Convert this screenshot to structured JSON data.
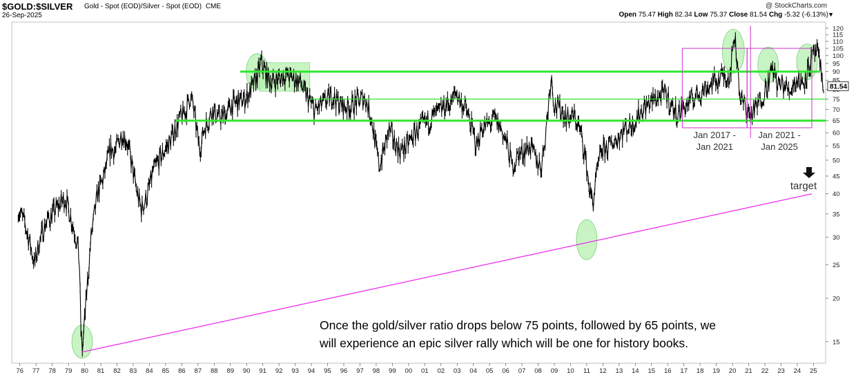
{
  "header": {
    "symbol": "$GOLD:$SILVER",
    "description": "Gold - Spot (EOD)/Silver - Spot (EOD)",
    "exchange": "CME",
    "date": "26-Sep-2025",
    "watermark": "@ StockCharts.com",
    "open_label": "Open",
    "open": "75.47",
    "high_label": "High",
    "high": "82.34",
    "low_label": "Low",
    "low": "75.37",
    "close_label": "Close",
    "close": "81.54",
    "chg_label": "Chg",
    "chg": "-5.32 (-6.13%)",
    "dropdown_icon": "triangle-down-icon"
  },
  "colors": {
    "price": "#000000",
    "support_line": "#2ee82e",
    "trendline": "#ee22ee",
    "highlight": "#b6f0b0",
    "box": "#cc33cc",
    "last_price_box": "#ffffff",
    "grid": "#e6e6e6"
  },
  "chart_data": {
    "type": "line",
    "log_scale": true,
    "grid": false,
    "y_ticks": [
      15,
      20,
      25,
      30,
      35,
      40,
      45,
      50,
      55,
      60,
      65,
      70,
      75,
      80,
      85,
      90,
      95,
      100,
      105,
      110,
      115,
      120
    ],
    "x_ticks": [
      "76",
      "77",
      "78",
      "79",
      "80",
      "81",
      "82",
      "83",
      "84",
      "85",
      "86",
      "87",
      "88",
      "89",
      "90",
      "91",
      "92",
      "93",
      "94",
      "95",
      "96",
      "97",
      "98",
      "99",
      "00",
      "01",
      "02",
      "03",
      "04",
      "05",
      "06",
      "07",
      "08",
      "09",
      "10",
      "11",
      "12",
      "13",
      "14",
      "15",
      "16",
      "17",
      "18",
      "19",
      "20",
      "21",
      "22",
      "23",
      "24",
      "25"
    ],
    "last_value": "81.54",
    "series": [
      {
        "values_approx": [
          [
            1976.0,
            36
          ],
          [
            1976.4,
            33
          ],
          [
            1976.8,
            28
          ],
          [
            1977.0,
            25
          ],
          [
            1977.3,
            29
          ],
          [
            1977.7,
            33
          ],
          [
            1978.1,
            35
          ],
          [
            1978.5,
            37
          ],
          [
            1978.9,
            39
          ],
          [
            1979.2,
            35
          ],
          [
            1979.5,
            31
          ],
          [
            1979.7,
            28
          ],
          [
            1979.8,
            24
          ],
          [
            1979.85,
            17
          ],
          [
            1979.95,
            14
          ],
          [
            1980.05,
            16
          ],
          [
            1980.2,
            20
          ],
          [
            1980.5,
            30
          ],
          [
            1980.9,
            40
          ],
          [
            1981.3,
            45
          ],
          [
            1981.7,
            54
          ],
          [
            1982.0,
            53
          ],
          [
            1982.4,
            60
          ],
          [
            1982.7,
            57
          ],
          [
            1983.0,
            49
          ],
          [
            1983.3,
            41
          ],
          [
            1983.6,
            36
          ],
          [
            1984.0,
            40
          ],
          [
            1984.3,
            46
          ],
          [
            1984.7,
            50
          ],
          [
            1985.0,
            53
          ],
          [
            1985.4,
            57
          ],
          [
            1985.7,
            62
          ],
          [
            1986.0,
            66
          ],
          [
            1986.4,
            70
          ],
          [
            1986.6,
            77
          ],
          [
            1986.8,
            72
          ],
          [
            1987.0,
            62
          ],
          [
            1987.2,
            54
          ],
          [
            1987.5,
            62
          ],
          [
            1988.0,
            70
          ],
          [
            1988.4,
            66
          ],
          [
            1988.8,
            68
          ],
          [
            1989.2,
            72
          ],
          [
            1989.6,
            74
          ],
          [
            1990.0,
            75
          ],
          [
            1990.4,
            80
          ],
          [
            1990.8,
            88
          ],
          [
            1991.0,
            96
          ],
          [
            1991.3,
            88
          ],
          [
            1991.7,
            84
          ],
          [
            1992.1,
            86
          ],
          [
            1992.5,
            88
          ],
          [
            1993.0,
            86
          ],
          [
            1993.4,
            84
          ],
          [
            1993.7,
            78
          ],
          [
            1994.0,
            74
          ],
          [
            1994.3,
            69
          ],
          [
            1994.7,
            72
          ],
          [
            1995.0,
            74
          ],
          [
            1995.4,
            77
          ],
          [
            1995.8,
            73
          ],
          [
            1996.2,
            71
          ],
          [
            1996.6,
            72
          ],
          [
            1997.0,
            74
          ],
          [
            1997.4,
            76
          ],
          [
            1997.8,
            67
          ],
          [
            1998.1,
            54
          ],
          [
            1998.3,
            48
          ],
          [
            1998.6,
            54
          ],
          [
            1998.9,
            61
          ],
          [
            1999.2,
            57
          ],
          [
            1999.6,
            53
          ],
          [
            2000.0,
            55
          ],
          [
            2000.4,
            59
          ],
          [
            2000.8,
            62
          ],
          [
            2001.2,
            64
          ],
          [
            2001.6,
            67
          ],
          [
            2002.0,
            69
          ],
          [
            2002.4,
            72
          ],
          [
            2002.8,
            74
          ],
          [
            2003.0,
            79
          ],
          [
            2003.3,
            74
          ],
          [
            2003.6,
            71
          ],
          [
            2004.0,
            62
          ],
          [
            2004.3,
            55
          ],
          [
            2004.6,
            62
          ],
          [
            2005.0,
            63
          ],
          [
            2005.4,
            66
          ],
          [
            2005.8,
            62
          ],
          [
            2006.2,
            55
          ],
          [
            2006.5,
            48
          ],
          [
            2006.9,
            52
          ],
          [
            2007.2,
            53
          ],
          [
            2007.6,
            55
          ],
          [
            2008.0,
            50
          ],
          [
            2008.3,
            48
          ],
          [
            2008.6,
            62
          ],
          [
            2008.8,
            78
          ],
          [
            2008.9,
            88
          ],
          [
            2009.1,
            72
          ],
          [
            2009.5,
            70
          ],
          [
            2009.9,
            66
          ],
          [
            2010.3,
            67
          ],
          [
            2010.6,
            63
          ],
          [
            2010.9,
            55
          ],
          [
            2011.1,
            48
          ],
          [
            2011.3,
            40
          ],
          [
            2011.5,
            38
          ],
          [
            2011.7,
            45
          ],
          [
            2012.0,
            53
          ],
          [
            2012.5,
            55
          ],
          [
            2013.0,
            58
          ],
          [
            2013.5,
            62
          ],
          [
            2014.0,
            64
          ],
          [
            2014.5,
            70
          ],
          [
            2015.0,
            73
          ],
          [
            2015.5,
            76
          ],
          [
            2016.0,
            78
          ],
          [
            2016.3,
            72
          ],
          [
            2016.7,
            68
          ],
          [
            2017.0,
            70
          ],
          [
            2017.5,
            74
          ],
          [
            2018.0,
            78
          ],
          [
            2018.5,
            81
          ],
          [
            2019.0,
            84
          ],
          [
            2019.5,
            88
          ],
          [
            2019.9,
            87
          ],
          [
            2020.1,
            100
          ],
          [
            2020.2,
            118
          ],
          [
            2020.4,
            96
          ],
          [
            2020.6,
            74
          ],
          [
            2020.9,
            72
          ],
          [
            2021.2,
            67
          ],
          [
            2021.5,
            70
          ],
          [
            2021.9,
            76
          ],
          [
            2022.3,
            84
          ],
          [
            2022.6,
            92
          ],
          [
            2022.9,
            82
          ],
          [
            2023.2,
            83
          ],
          [
            2023.6,
            79
          ],
          [
            2023.9,
            84
          ],
          [
            2024.2,
            85
          ],
          [
            2024.5,
            84
          ],
          [
            2024.7,
            89
          ],
          [
            2024.9,
            95
          ],
          [
            2025.1,
            100
          ],
          [
            2025.3,
            104
          ],
          [
            2025.5,
            93
          ],
          [
            2025.7,
            85
          ],
          [
            2025.74,
            81.54
          ]
        ]
      }
    ],
    "annotations": {
      "support_levels": [
        90,
        75,
        65
      ],
      "trendline": {
        "from": [
          1979.95,
          14
        ],
        "to": [
          2025.0,
          40
        ]
      },
      "boxes": [
        {
          "x_from": 2017.0,
          "x_to": 2021.0,
          "y_from": 62,
          "y_to": 105,
          "label_line1": "Jan 2017 -",
          "label_line2": "Jan 2021"
        },
        {
          "x_from": 2021.0,
          "x_to": 2025.0,
          "y_from": 62,
          "y_to": 105,
          "label_line1": "Jan 2021 -",
          "label_line2": "Jan 2025"
        }
      ],
      "divider_year": 2021.0,
      "target_label": "target",
      "target_icon": "arrow-down-icon"
    }
  },
  "caption_line1": "Once the gold/silver ratio drops below 75 points, followed by 65 points, we",
  "caption_line2": "will experience an epic silver rally which will be one for history books."
}
